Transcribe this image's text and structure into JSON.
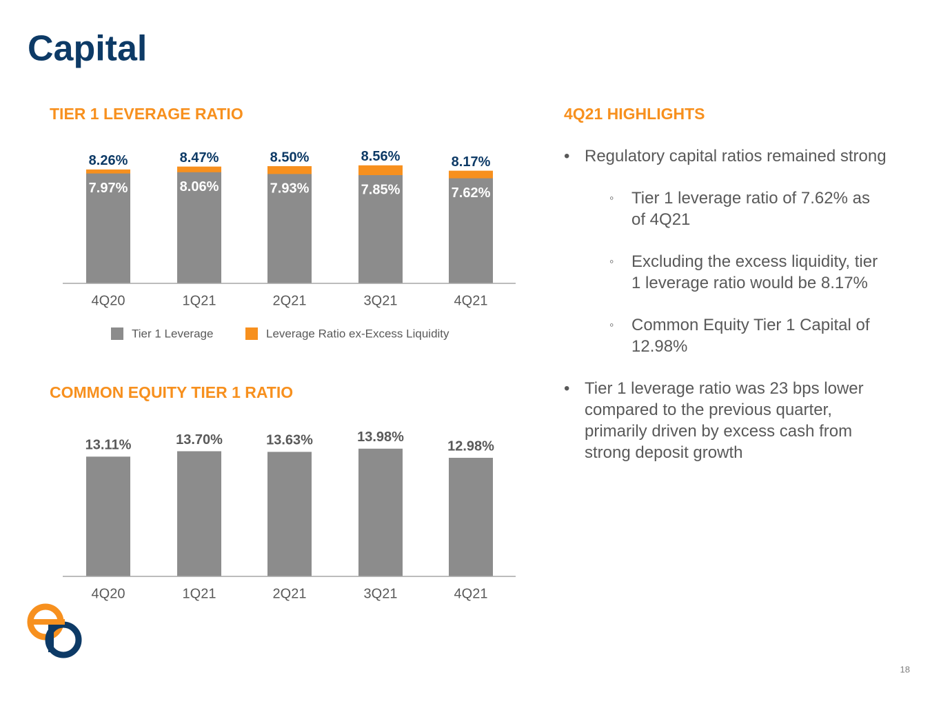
{
  "title": "Capital",
  "page_number": "18",
  "chart_data": [
    {
      "type": "bar",
      "title": "TIER 1 LEVERAGE RATIO",
      "categories": [
        "4Q20",
        "1Q21",
        "2Q21",
        "3Q21",
        "4Q21"
      ],
      "ylim": [
        0,
        10
      ],
      "series": [
        {
          "name": "Leverage Ratio ex-Excess Liquidity",
          "color": "#f7901e",
          "values": [
            8.26,
            8.47,
            8.5,
            8.56,
            8.17
          ],
          "value_labels": [
            "8.26%",
            "8.47%",
            "8.50%",
            "8.56%",
            "8.17%"
          ]
        },
        {
          "name": "Tier 1 Leverage",
          "color": "#8c8c8c",
          "values": [
            7.97,
            8.06,
            7.93,
            7.85,
            7.62
          ],
          "value_labels": [
            "7.97%",
            "8.06%",
            "7.93%",
            "7.85%",
            "7.62%"
          ]
        }
      ]
    },
    {
      "type": "bar",
      "title": "COMMON EQUITY TIER 1 RATIO",
      "categories": [
        "4Q20",
        "1Q21",
        "2Q21",
        "3Q21",
        "4Q21"
      ],
      "ylim": [
        0,
        16
      ],
      "series": [
        {
          "color": "#8c8c8c",
          "values": [
            13.11,
            13.7,
            13.63,
            13.98,
            12.98
          ],
          "value_labels": [
            "13.11%",
            "13.70%",
            "13.63%",
            "13.98%",
            "12.98%"
          ]
        }
      ]
    }
  ],
  "highlights": {
    "title": "4Q21 HIGHLIGHTS",
    "items": [
      {
        "text": "Regulatory capital ratios remained strong",
        "subitems": [
          "Tier 1 leverage ratio of 7.62% as of 4Q21",
          "Excluding the excess liquidity, tier 1 leverage ratio would be 8.17%",
          "Common Equity Tier 1 Capital of 12.98%"
        ]
      },
      {
        "text": "Tier 1 leverage ratio was 23 bps lower compared to the previous quarter, primarily driven by excess cash from strong deposit growth"
      }
    ]
  }
}
